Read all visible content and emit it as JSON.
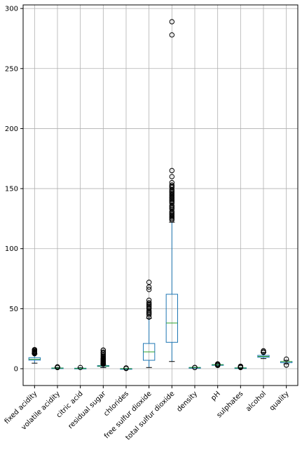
{
  "chart_data": {
    "type": "box",
    "title": "",
    "xlabel": "",
    "ylabel": "",
    "ylim": [
      -14,
      303
    ],
    "yticks": [
      0,
      50,
      100,
      150,
      200,
      250,
      300
    ],
    "grid": true,
    "legend": "none",
    "colors": {
      "box": "#1f77b4",
      "median": "#2ca02c",
      "whisker": "#000000",
      "flier": "#000000",
      "grid": "#b0b0b0"
    },
    "categories": [
      "fixed acidity",
      "volatile acidity",
      "citric acid",
      "residual sugar",
      "chlorides",
      "free sulfur dioxide",
      "total sulfur dioxide",
      "density",
      "pH",
      "sulphates",
      "alcohol",
      "quality"
    ],
    "boxes": [
      {
        "label": "fixed acidity",
        "whislo": 4.6,
        "q1": 7.1,
        "med": 7.9,
        "q3": 9.2,
        "whishi": 12.3,
        "fliers": [
          12.5,
          12.8,
          13.0,
          13.3,
          13.7,
          14.0,
          14.3,
          15.0,
          15.6,
          15.9
        ]
      },
      {
        "label": "volatile acidity",
        "whislo": 0.12,
        "q1": 0.39,
        "med": 0.52,
        "q3": 0.64,
        "whishi": 1.01,
        "fliers": [
          1.04,
          1.09,
          1.13,
          1.18,
          1.24,
          1.33,
          1.58
        ]
      },
      {
        "label": "citric acid",
        "whislo": 0.0,
        "q1": 0.09,
        "med": 0.26,
        "q3": 0.42,
        "whishi": 0.79,
        "fliers": [
          1.0
        ]
      },
      {
        "label": "residual sugar",
        "whislo": 0.9,
        "q1": 1.9,
        "med": 2.2,
        "q3": 2.6,
        "whishi": 3.6,
        "fliers": [
          3.7,
          4.0,
          4.4,
          4.8,
          5.2,
          5.6,
          6.0,
          6.5,
          7.0,
          7.5,
          8.0,
          8.5,
          9.0,
          10.0,
          11.0,
          12.0,
          13.0,
          13.8,
          15.4,
          15.5
        ]
      },
      {
        "label": "chlorides",
        "whislo": 0.01,
        "q1": 0.07,
        "med": 0.08,
        "q3": 0.09,
        "whishi": 0.12,
        "fliers": [
          0.2,
          0.35,
          0.5,
          0.61
        ]
      },
      {
        "label": "free sulfur dioxide",
        "whislo": 1,
        "q1": 7,
        "med": 14,
        "q3": 21,
        "whishi": 42,
        "fliers": [
          43,
          45,
          46,
          47,
          48,
          50,
          51,
          52,
          53,
          54,
          55,
          57,
          66,
          68,
          72
        ]
      },
      {
        "label": "total sulfur dioxide",
        "whislo": 6,
        "q1": 22,
        "med": 38,
        "q3": 62,
        "whishi": 122,
        "fliers": [
          124,
          125,
          126,
          127,
          128,
          129,
          130,
          131,
          133,
          134,
          135,
          136,
          138,
          139,
          140,
          141,
          142,
          143,
          144,
          145,
          146,
          147,
          148,
          149,
          151,
          152,
          153,
          155,
          160,
          165,
          278,
          289
        ]
      },
      {
        "label": "density",
        "whislo": 0.99,
        "q1": 0.996,
        "med": 0.997,
        "q3": 0.998,
        "whishi": 1.0,
        "fliers": [
          1.002,
          1.003
        ]
      },
      {
        "label": "pH",
        "whislo": 2.93,
        "q1": 3.21,
        "med": 3.31,
        "q3": 3.4,
        "whishi": 3.68,
        "fliers": [
          2.74,
          2.86,
          2.88,
          3.69,
          3.71,
          3.78,
          3.9,
          4.01
        ]
      },
      {
        "label": "sulphates",
        "whislo": 0.33,
        "q1": 0.55,
        "med": 0.62,
        "q3": 0.73,
        "whishi": 0.98,
        "fliers": [
          1.0,
          1.1,
          1.2,
          1.3,
          1.4,
          1.6,
          1.8,
          1.95,
          2.0
        ]
      },
      {
        "label": "alcohol",
        "whislo": 8.4,
        "q1": 9.5,
        "med": 10.2,
        "q3": 11.1,
        "whishi": 13.5,
        "fliers": [
          13.6,
          14.0,
          14.9
        ]
      },
      {
        "label": "quality",
        "whislo": 4,
        "q1": 5,
        "med": 6,
        "q3": 6,
        "whishi": 7,
        "fliers": [
          3,
          8
        ]
      }
    ]
  }
}
